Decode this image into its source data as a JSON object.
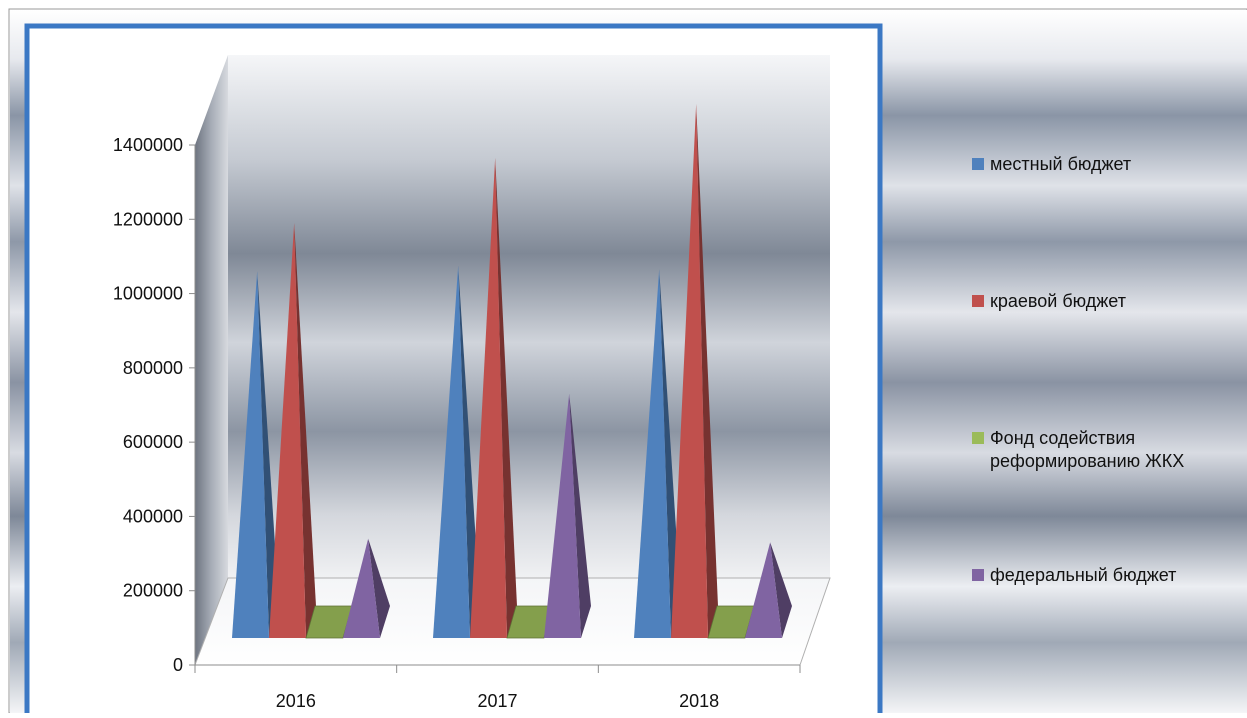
{
  "chart_data": {
    "type": "bar",
    "style": "3d-pyramid",
    "categories": [
      "2016",
      "2017",
      "2018"
    ],
    "series": [
      {
        "name": "местный бюджет",
        "color": "#4f81bd",
        "values": [
          880000,
          895000,
          885000
        ]
      },
      {
        "name": "краевой бюджет",
        "color": "#c0504d",
        "values": [
          1010000,
          1185000,
          1330000
        ]
      },
      {
        "name": "Фонд содействия реформированию ЖКХ",
        "color": "#9bbb59",
        "values": [
          0,
          0,
          0
        ]
      },
      {
        "name": "федеральный бюджет",
        "color": "#8064a2",
        "values": [
          160000,
          550000,
          150000
        ]
      }
    ],
    "yticks": [
      "0",
      "200000",
      "400000",
      "600000",
      "800000",
      "1000000",
      "1200000",
      "1400000"
    ],
    "ylim": [
      0,
      1400000
    ],
    "legend_position": "right",
    "grid": false
  }
}
